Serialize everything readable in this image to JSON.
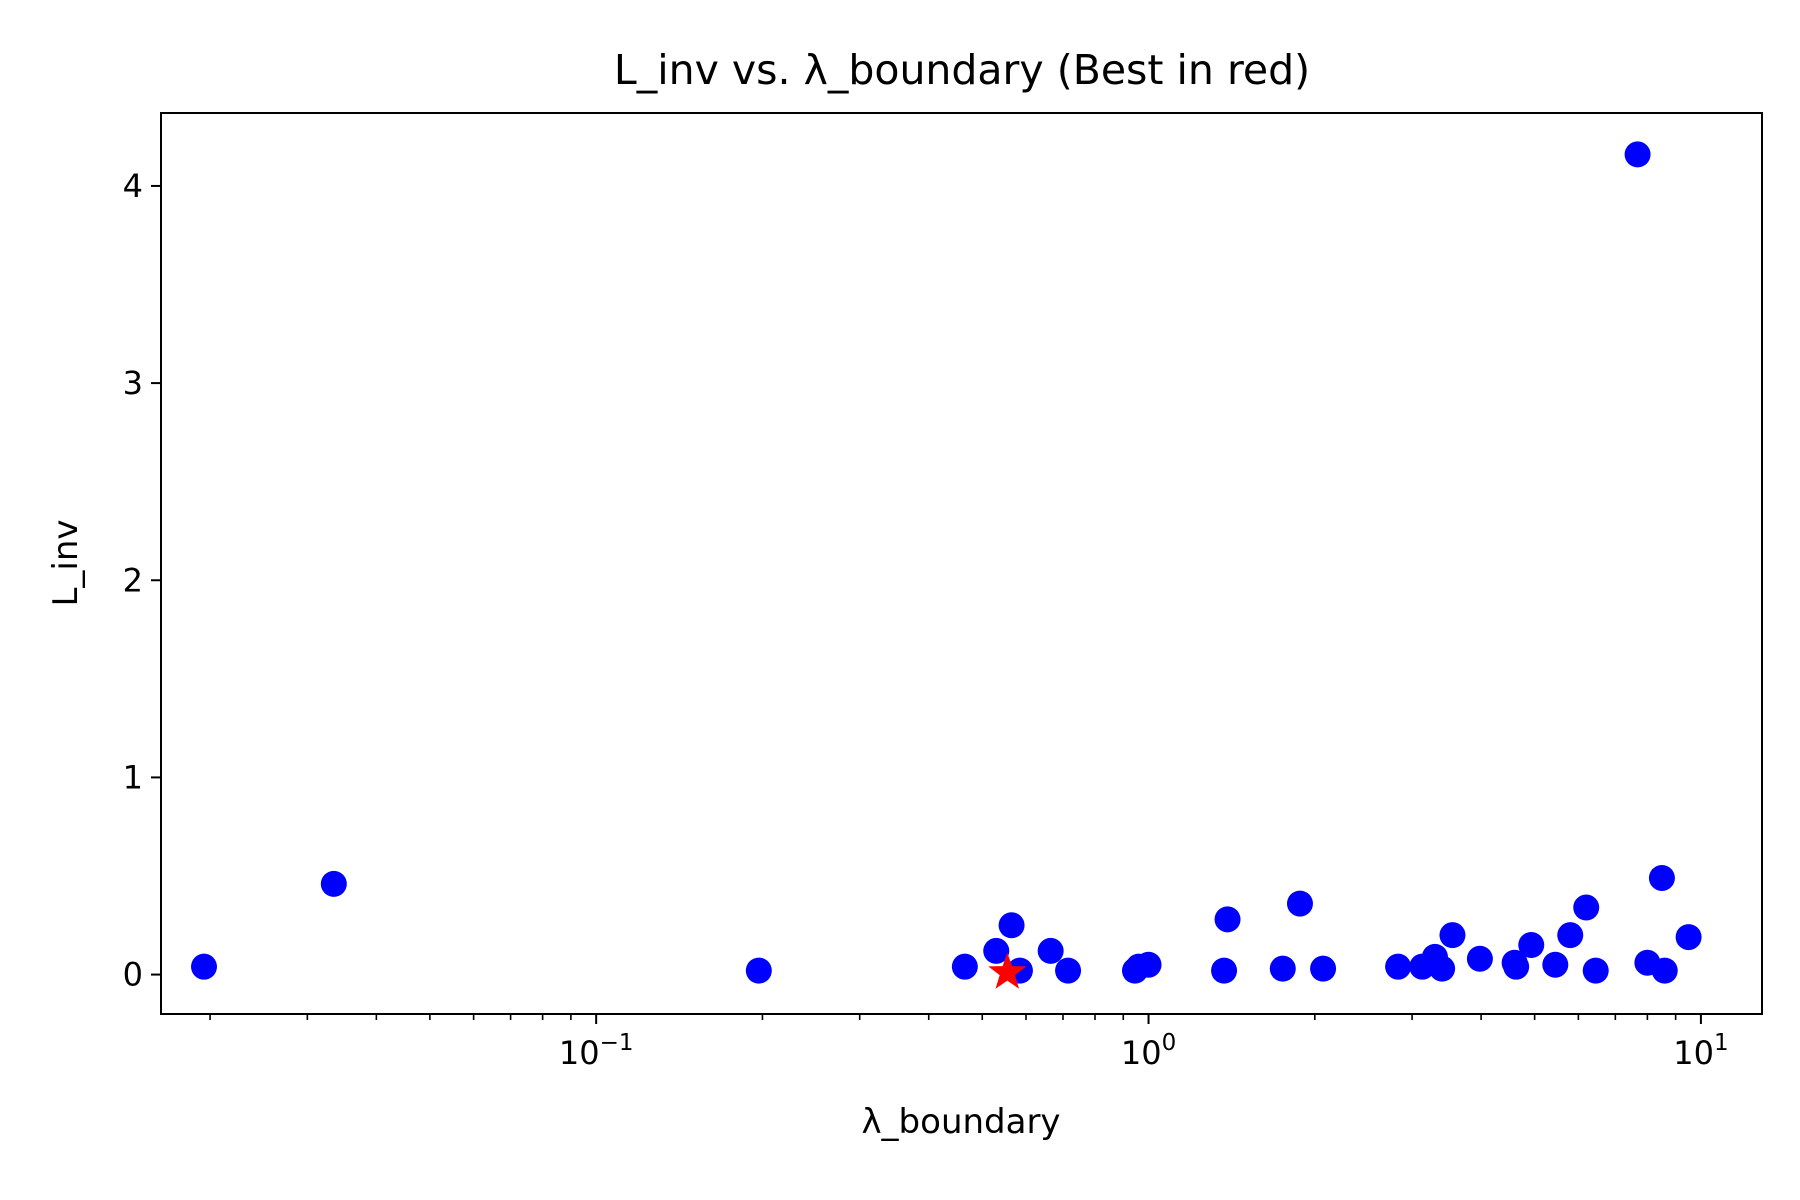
{
  "chart_data": {
    "type": "scatter",
    "title": "L_inv vs. λ_boundary (Best in red)",
    "xlabel": "λ_boundary",
    "ylabel": "L_inv",
    "x_scale": "log",
    "xlim": [
      0.0163,
      12.9
    ],
    "ylim": [
      -0.2,
      4.37
    ],
    "x_ticks": [
      {
        "value": 0.1,
        "base": "10",
        "exponent": "−1"
      },
      {
        "value": 1,
        "base": "10",
        "exponent": "0"
      },
      {
        "value": 10,
        "base": "10",
        "exponent": "1"
      }
    ],
    "y_ticks": [
      {
        "value": 0,
        "label": "0"
      },
      {
        "value": 1,
        "label": "1"
      },
      {
        "value": 2,
        "label": "2"
      },
      {
        "value": 3,
        "label": "3"
      },
      {
        "value": 4,
        "label": "4"
      }
    ],
    "grid": false,
    "legend": false,
    "series": [
      {
        "marker": "circle",
        "color": "#0000ff",
        "points": [
          {
            "x": 0.0195,
            "y": 0.04
          },
          {
            "x": 0.0335,
            "y": 0.46
          },
          {
            "x": 0.197,
            "y": 0.02
          },
          {
            "x": 0.465,
            "y": 0.04
          },
          {
            "x": 0.53,
            "y": 0.12
          },
          {
            "x": 0.565,
            "y": 0.25
          },
          {
            "x": 0.585,
            "y": 0.02
          },
          {
            "x": 0.665,
            "y": 0.12
          },
          {
            "x": 0.715,
            "y": 0.02
          },
          {
            "x": 0.945,
            "y": 0.02
          },
          {
            "x": 0.96,
            "y": 0.04
          },
          {
            "x": 1.0,
            "y": 0.05
          },
          {
            "x": 1.37,
            "y": 0.02
          },
          {
            "x": 1.39,
            "y": 0.28
          },
          {
            "x": 1.75,
            "y": 0.03
          },
          {
            "x": 1.88,
            "y": 0.36
          },
          {
            "x": 2.07,
            "y": 0.03
          },
          {
            "x": 2.83,
            "y": 0.04
          },
          {
            "x": 3.13,
            "y": 0.04
          },
          {
            "x": 3.3,
            "y": 0.09
          },
          {
            "x": 3.4,
            "y": 0.03
          },
          {
            "x": 3.55,
            "y": 0.2
          },
          {
            "x": 3.98,
            "y": 0.08
          },
          {
            "x": 4.6,
            "y": 0.06
          },
          {
            "x": 4.63,
            "y": 0.04
          },
          {
            "x": 4.93,
            "y": 0.15
          },
          {
            "x": 5.45,
            "y": 0.05
          },
          {
            "x": 5.8,
            "y": 0.2
          },
          {
            "x": 6.2,
            "y": 0.34
          },
          {
            "x": 6.45,
            "y": 0.02
          },
          {
            "x": 7.68,
            "y": 4.16
          },
          {
            "x": 8.0,
            "y": 0.06
          },
          {
            "x": 8.5,
            "y": 0.49
          },
          {
            "x": 8.6,
            "y": 0.02
          },
          {
            "x": 9.5,
            "y": 0.19
          }
        ]
      },
      {
        "marker": "star",
        "color": "#ff0000",
        "points": [
          {
            "x": 0.555,
            "y": 0.01
          }
        ]
      }
    ]
  }
}
